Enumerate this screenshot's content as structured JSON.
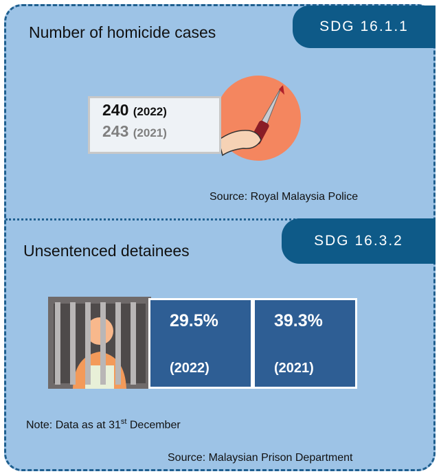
{
  "sections": [
    {
      "badge": "SDG 16.1.1",
      "heading": "Number of homicide cases",
      "rows": [
        {
          "value": "240",
          "year": "(2022)"
        },
        {
          "value": "243",
          "year": "(2021)"
        }
      ],
      "source": "Source: Royal Malaysia Police"
    },
    {
      "badge": "SDG 16.3.2",
      "heading": "Unsentenced detainees",
      "rows": [
        {
          "value": "29.5%",
          "year": "(2022)"
        },
        {
          "value": "39.3%",
          "year": "(2021)"
        }
      ],
      "note": {
        "text": "Note: Data as at 31",
        "sup": "st",
        "tail": " December"
      },
      "source": "Source: Malaysian Prison Department"
    }
  ]
}
